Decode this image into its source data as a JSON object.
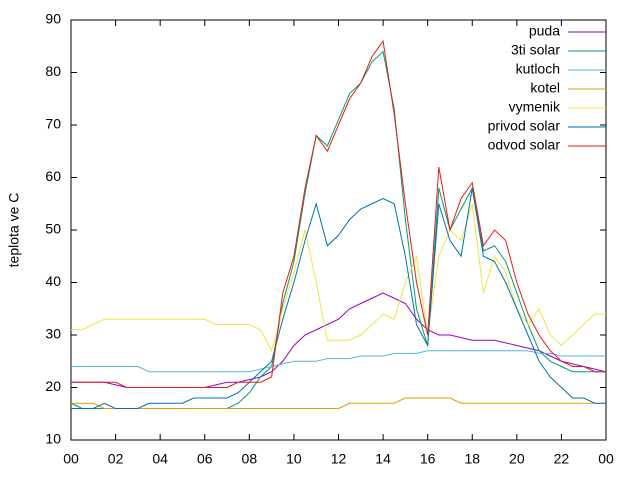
{
  "chart_data": {
    "type": "line",
    "ylabel": "teplota ve C",
    "xlim": [
      0,
      24
    ],
    "ylim": [
      10,
      90
    ],
    "xticks": [
      {
        "value": 0,
        "label": "00"
      },
      {
        "value": 2,
        "label": "02"
      },
      {
        "value": 4,
        "label": "04"
      },
      {
        "value": 6,
        "label": "06"
      },
      {
        "value": 8,
        "label": "08"
      },
      10,
      12,
      14,
      16,
      18,
      20,
      22,
      {
        "value": 24,
        "label": "00"
      }
    ],
    "yticks": [
      10,
      20,
      30,
      40,
      50,
      60,
      70,
      80,
      90
    ],
    "legend": "top-right",
    "x": [
      0,
      0.5,
      1,
      1.5,
      2,
      2.5,
      3,
      3.5,
      4,
      4.5,
      5,
      5.5,
      6,
      6.5,
      7,
      7.5,
      8,
      8.5,
      9,
      9.5,
      10,
      10.5,
      11,
      11.5,
      12,
      12.5,
      13,
      13.5,
      14,
      14.5,
      15,
      15.5,
      16,
      16.5,
      17,
      17.5,
      18,
      18.5,
      19,
      19.5,
      20,
      20.5,
      21,
      21.5,
      22,
      22.5,
      23,
      23.5,
      24
    ],
    "series": [
      {
        "name": "puda",
        "color": "#9400d3",
        "values": [
          21,
          21,
          21,
          21,
          20.5,
          20,
          20,
          20,
          20,
          20,
          20,
          20,
          20,
          20.5,
          21,
          21,
          21.5,
          22,
          23,
          25,
          28,
          30,
          31,
          32,
          33,
          35,
          36,
          37,
          38,
          37,
          36,
          33,
          31,
          30,
          30,
          29.5,
          29,
          29,
          29,
          28.5,
          28,
          27.5,
          27,
          26,
          25,
          24.5,
          24,
          23.5,
          23
        ]
      },
      {
        "name": "3ti solar",
        "color": "#009e73",
        "values": [
          17,
          16,
          16,
          16,
          16,
          16,
          16,
          16,
          16,
          16,
          16,
          16,
          16,
          16,
          16,
          17,
          19,
          22,
          24,
          36,
          44,
          57,
          68,
          66,
          71,
          76,
          78,
          82,
          84,
          73,
          52,
          35,
          28,
          58,
          50,
          54,
          58,
          46,
          47,
          44,
          38,
          32,
          27,
          25,
          24,
          23,
          23,
          23,
          23
        ]
      },
      {
        "name": "kutloch",
        "color": "#56b4e9",
        "values": [
          24,
          24,
          24,
          24,
          24,
          24,
          24,
          23,
          23,
          23,
          23,
          23,
          23,
          23,
          23,
          23,
          23,
          23.5,
          24,
          24.5,
          25,
          25,
          25,
          25.5,
          25.5,
          25.5,
          26,
          26,
          26,
          26.5,
          26.5,
          26.5,
          27,
          27,
          27,
          27,
          27,
          27,
          27,
          27,
          27,
          27,
          26.5,
          26.5,
          26,
          26,
          26,
          26,
          26
        ]
      },
      {
        "name": "kotel",
        "color": "#e69f00",
        "values": [
          17,
          17,
          17,
          16,
          16,
          16,
          16,
          16,
          16,
          16,
          16,
          16,
          16,
          16,
          16,
          16,
          16,
          16,
          16,
          16,
          16,
          16,
          16,
          16,
          16,
          17,
          17,
          17,
          17,
          17,
          18,
          18,
          18,
          18,
          18,
          17,
          17,
          17,
          17,
          17,
          17,
          17,
          17,
          17,
          17,
          17,
          17,
          17,
          17
        ]
      },
      {
        "name": "vymenik",
        "color": "#f0e442",
        "values": [
          31,
          31,
          32,
          33,
          33,
          33,
          33,
          33,
          33,
          33,
          33,
          33,
          33,
          32,
          32,
          32,
          32,
          31,
          27,
          35,
          42,
          50,
          40,
          29,
          29,
          29,
          30,
          32,
          34,
          33,
          40,
          45,
          30,
          45,
          50,
          48,
          55,
          38,
          45,
          42,
          35,
          32,
          35,
          30,
          28,
          30,
          32,
          34,
          34
        ]
      },
      {
        "name": "privod solar",
        "color": "#0072b2",
        "values": [
          16,
          16,
          16,
          17,
          16,
          16,
          16,
          17,
          17,
          17,
          17,
          18,
          18,
          18,
          18,
          19,
          21,
          23,
          25,
          33,
          40,
          48,
          55,
          47,
          49,
          52,
          54,
          55,
          56,
          55,
          45,
          32,
          28,
          55,
          48,
          45,
          58,
          45,
          44,
          40,
          35,
          30,
          25,
          22,
          20,
          18,
          18,
          17,
          17
        ]
      },
      {
        "name": "odvod solar",
        "color": "#e51e10",
        "values": [
          21,
          21,
          21,
          21,
          21,
          20,
          20,
          20,
          20,
          20,
          20,
          20,
          20,
          20,
          20,
          21,
          21,
          21,
          22,
          38,
          45,
          58,
          68,
          65,
          70,
          75,
          78,
          83,
          86,
          72,
          55,
          40,
          30,
          62,
          50,
          56,
          59,
          47,
          50,
          48,
          40,
          34,
          30,
          27,
          25,
          24,
          24,
          23,
          23
        ]
      }
    ]
  }
}
